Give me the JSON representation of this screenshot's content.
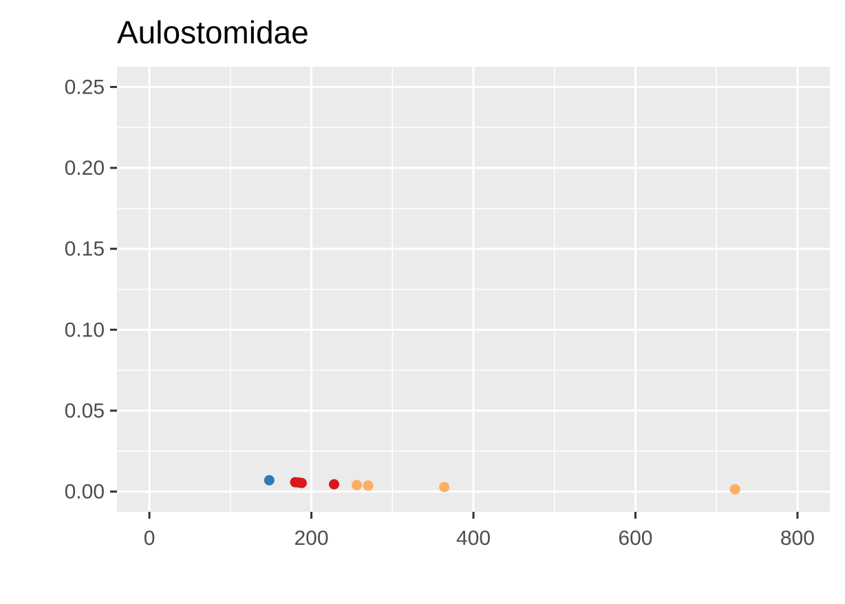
{
  "chart_data": {
    "type": "scatter",
    "title": "Aulostomidae",
    "xlabel": "",
    "ylabel": "",
    "xlim": [
      -40,
      840
    ],
    "ylim": [
      -0.0125,
      0.2625
    ],
    "x_ticks": [
      0,
      200,
      400,
      600,
      800
    ],
    "x_tick_labels": [
      "0",
      "200",
      "400",
      "600",
      "800"
    ],
    "y_ticks": [
      0.0,
      0.05,
      0.1,
      0.15,
      0.2,
      0.25
    ],
    "y_tick_labels": [
      "0.00",
      "0.05",
      "0.10",
      "0.15",
      "0.20",
      "0.25"
    ],
    "grid": true,
    "legend": "none",
    "colors": {
      "panel": "#ebebeb",
      "grid": "#ffffff",
      "blue": "#2c7bb6",
      "red": "#d7191c",
      "orange": "#fdae61"
    },
    "points": [
      {
        "x": 148,
        "y": 0.007,
        "color": "blue"
      },
      {
        "x": 180,
        "y": 0.0058,
        "color": "red"
      },
      {
        "x": 184,
        "y": 0.0056,
        "color": "red"
      },
      {
        "x": 188,
        "y": 0.0053,
        "color": "red"
      },
      {
        "x": 228,
        "y": 0.0045,
        "color": "red"
      },
      {
        "x": 256,
        "y": 0.004,
        "color": "orange"
      },
      {
        "x": 270,
        "y": 0.0037,
        "color": "orange"
      },
      {
        "x": 364,
        "y": 0.0028,
        "color": "orange"
      },
      {
        "x": 723,
        "y": 0.0014,
        "color": "orange"
      }
    ]
  }
}
